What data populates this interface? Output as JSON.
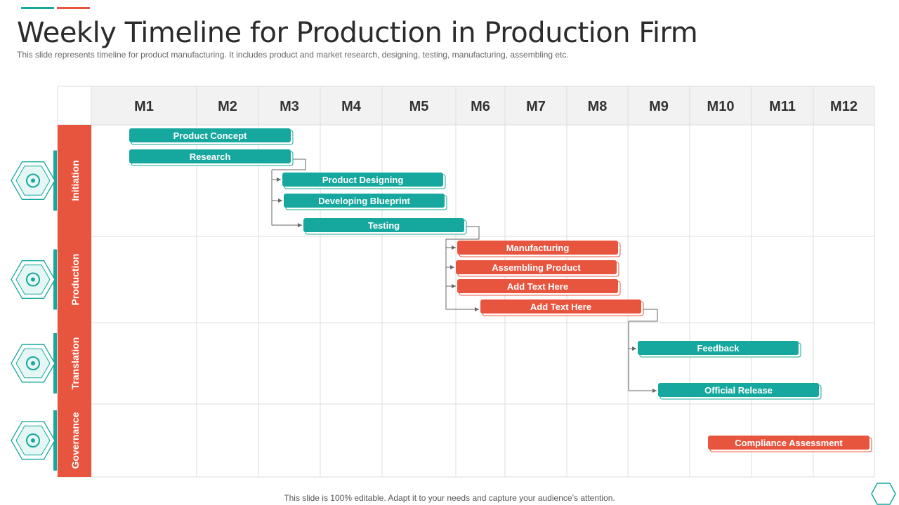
{
  "slide": {
    "title": "Weekly Timeline for Production in Production Firm",
    "subtitle": "This slide represents timeline for product manufacturing. It includes product and market research, designing, testing, manufacturing, assembling etc.",
    "footer": "This slide is 100% editable. Adapt it to your needs and capture your audience’s attention."
  },
  "colors": {
    "teal": "#16a89e",
    "red": "#e8553f",
    "header_bg": "#f2f2f2",
    "grid": "#dddddd",
    "hex_fill": "#e4f7f5"
  },
  "months": [
    "M1",
    "M2",
    "M3",
    "M4",
    "M5",
    "M6",
    "M7",
    "M8",
    "M9",
    "M10",
    "M11",
    "M12"
  ],
  "phases": [
    {
      "label": "Initiation",
      "icon": "rocket-icon"
    },
    {
      "label": "Production",
      "icon": "conveyor-gears-icon"
    },
    {
      "label": "Translation",
      "icon": "refresh-gear-icon"
    },
    {
      "label": "Governance",
      "icon": "hands-people-icon"
    }
  ],
  "tasks": [
    {
      "label": "Product Concept",
      "phase": "Initiation",
      "color": "teal"
    },
    {
      "label": "Research",
      "phase": "Initiation",
      "color": "teal"
    },
    {
      "label": "Product Designing",
      "phase": "Initiation",
      "color": "teal"
    },
    {
      "label": "Developing Blueprint",
      "phase": "Initiation",
      "color": "teal"
    },
    {
      "label": "Testing",
      "phase": "Initiation",
      "color": "teal"
    },
    {
      "label": "Manufacturing",
      "phase": "Production",
      "color": "red"
    },
    {
      "label": "Assembling Product",
      "phase": "Production",
      "color": "red"
    },
    {
      "label": "Add Text Here",
      "phase": "Production",
      "color": "red"
    },
    {
      "label": "Add Text Here",
      "phase": "Production",
      "color": "red"
    },
    {
      "label": "Feedback",
      "phase": "Translation",
      "color": "teal"
    },
    {
      "label": "Official Release",
      "phase": "Translation",
      "color": "teal"
    },
    {
      "label": "Compliance Assessment",
      "phase": "Governance",
      "color": "red"
    }
  ]
}
